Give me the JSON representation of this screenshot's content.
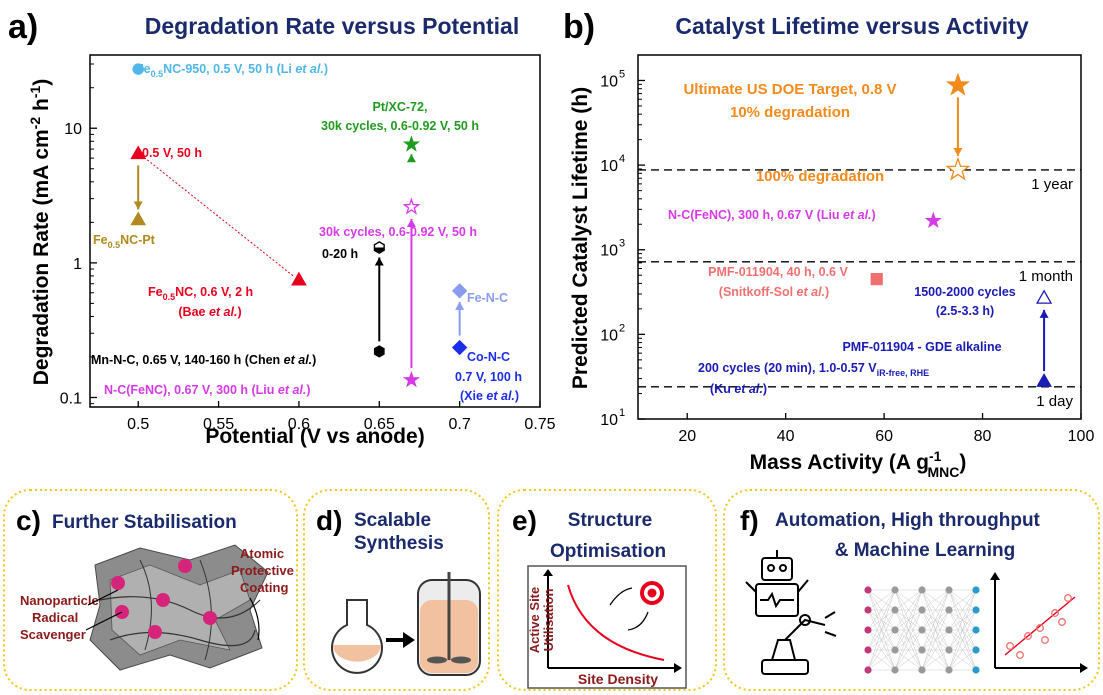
{
  "panels": [
    {
      "letter": "a)",
      "title": "Degradation Rate versus Potential"
    },
    {
      "letter": "b)",
      "title": "Catalyst Lifetime versus Activity"
    },
    {
      "letter": "c)",
      "title": "Further Stabilisation"
    },
    {
      "letter": "d)",
      "title": "Scalable",
      "title2": "Synthesis"
    },
    {
      "letter": "e)",
      "title": "Structure",
      "title2": "Optimisation"
    },
    {
      "letter": "f)",
      "title": "Automation, High throughput",
      "title2": "& Machine Learning"
    }
  ],
  "chart_data": [
    {
      "type": "scatter",
      "title": "Degradation Rate versus Potential",
      "xlabel": "Potential (V vs anode)",
      "ylabel_main": "Degradation Rate (mA cm",
      "ylabel_sup1": "-2",
      "ylabel_mid": " h",
      "ylabel_sup2": "-1",
      "ylabel_end": ")",
      "y_scale": "log",
      "xlim": [
        0.47,
        0.75
      ],
      "ylim": [
        0.085,
        35
      ],
      "xticks": [
        "0.5",
        "0.55",
        "0.6",
        "0.65",
        "0.7",
        "0.75"
      ],
      "xtick_values": [
        0.5,
        0.55,
        0.6,
        0.65,
        0.7,
        0.75
      ],
      "yticks": [
        "0.1",
        "1",
        "10"
      ],
      "ytick_values": [
        0.1,
        1,
        10
      ],
      "points": [
        {
          "x": 0.5,
          "y": 27.5,
          "marker": "circle",
          "color": "#4fb8e8"
        },
        {
          "x": 0.5,
          "y": 6.5,
          "marker": "triangle",
          "color": "#e8001c"
        },
        {
          "x": 0.5,
          "y": 2.1,
          "marker": "triangle",
          "color": "#b08a1c"
        },
        {
          "x": 0.6,
          "y": 0.75,
          "marker": "triangle",
          "color": "#e8001c"
        },
        {
          "x": 0.65,
          "y": 0.22,
          "marker": "hexagon",
          "color": "#000000"
        },
        {
          "x": 0.65,
          "y": 1.3,
          "marker": "hexagon-open",
          "color": "#000000"
        },
        {
          "x": 0.67,
          "y": 7.6,
          "marker": "star",
          "color": "#1e9c1e"
        },
        {
          "x": 0.67,
          "y": 2.6,
          "marker": "star-open",
          "color": "#d63ae8"
        },
        {
          "x": 0.67,
          "y": 0.135,
          "marker": "star",
          "color": "#d63ae8"
        },
        {
          "x": 0.7,
          "y": 0.62,
          "marker": "diamond",
          "color": "#8a9cf0"
        },
        {
          "x": 0.7,
          "y": 0.235,
          "marker": "diamond",
          "color": "#1c2ee8"
        }
      ],
      "labels": {
        "fe_nc950": [
          "Fe",
          "0.5",
          "NC-950, 0.5 V, 50 h (Li ",
          "et al.",
          ")"
        ],
        "half_v": "0.5 V, 50 h",
        "fe_nc_pt": [
          "Fe",
          "0.5",
          "NC-Pt"
        ],
        "fe_nc_bae": [
          "Fe",
          "0.5",
          "NC, 0.6 V, 2 h"
        ],
        "bae": [
          "(Bae ",
          "et al.",
          ")"
        ],
        "pt_xc_1": "Pt/XC-72,",
        "pt_xc_2": "30k cycles, 0.6-0.92 V, 50 h",
        "cycles_30k": "30k cycles, 0.6-0.92 V, 50 h",
        "h0_20": "0-20 h",
        "mn_nc": [
          "Mn-N-C, 0.65 V, 140-160 h (Chen ",
          "et al.",
          ")"
        ],
        "n_c_fenc": [
          "N-C(FeNC), 0.67 V, 300 h (Liu ",
          "et al.",
          ")"
        ],
        "fe_n_c": "Fe-N-C",
        "co_n_c": "Co-N-C",
        "co_cond": "0.7 V, 100 h",
        "xie": [
          "(Xie ",
          "et al.",
          ")"
        ]
      }
    },
    {
      "type": "scatter",
      "title": "Catalyst Lifetime versus Activity",
      "xlabel_main": "Mass Activity (A g",
      "xlabel_sup": "-1",
      "xlabel_sub": "MNC",
      "xlabel_end": ")",
      "ylabel": "Predicted Catalyst Lifetime (h)",
      "y_scale": "log",
      "xlim": [
        10,
        100
      ],
      "ylim": [
        10,
        200000
      ],
      "xticks": [
        "20",
        "40",
        "60",
        "80",
        "100"
      ],
      "xtick_values": [
        20,
        40,
        60,
        80,
        100
      ],
      "yticks": [
        "10",
        "10",
        "10",
        "10",
        "10"
      ],
      "ytick_exps": [
        "1",
        "2",
        "3",
        "4",
        "5"
      ],
      "ytick_values": [
        10,
        100,
        1000,
        10000,
        100000
      ],
      "reference_lines": [
        {
          "y": 8760,
          "label": "1 year"
        },
        {
          "y": 720,
          "label": "1 month"
        },
        {
          "y": 24,
          "label": "1 day"
        }
      ],
      "points": [
        {
          "x": 75,
          "y": 87600,
          "marker": "star",
          "color": "#f28a1c"
        },
        {
          "x": 75,
          "y": 8760,
          "marker": "star-open",
          "color": "#f28a1c"
        },
        {
          "x": 70,
          "y": 2200,
          "marker": "star",
          "color": "#d63ae8"
        },
        {
          "x": 58.5,
          "y": 450,
          "marker": "square",
          "color": "#f07070"
        },
        {
          "x": 92.5,
          "y": 270,
          "marker": "triangle-open",
          "color": "#1a1ab4"
        },
        {
          "x": 92.5,
          "y": 28,
          "marker": "triangle",
          "color": "#1a1ab4"
        }
      ],
      "labels": {
        "doe_1": "Ultimate US DOE Target, 0.8 V",
        "doe_2": "10% degradation",
        "deg100": "100% degradation",
        "n_c_fenc": [
          "N-C(FeNC), 300 h, 0.67 V (Liu ",
          "et al.",
          ")"
        ],
        "pmf_1": "PMF-011904, 40 h, 0.6 V",
        "pmf_2": [
          "(Snitkoff-Sol ",
          "et al.",
          ")"
        ],
        "cycles_1": "1500-2000 cycles",
        "cycles_2": "(2.5-3.3 h)",
        "gde_1": "PMF-011904 - GDE alkaline",
        "gde_2": [
          "200 cycles (20 min), 1.0-0.57 V",
          "iR-free, RHE"
        ],
        "ku": [
          "(Ku ",
          "et al.",
          ")"
        ]
      }
    }
  ],
  "schematics": {
    "c_labels": {
      "nano1": "Nanoparticle",
      "nano2": "Radical",
      "nano3": "Scavenger",
      "atomic1": "Atomic",
      "atomic2": "Protective",
      "atomic3": "Coating"
    },
    "e_axes": {
      "y1": "Active Site",
      "y2": "Utilisation",
      "x": "Site Density"
    }
  },
  "colors": {
    "title_navy": "#1a2a6c",
    "panel_border": "#f5c518",
    "dark_red_text": "#8b1a1a"
  }
}
